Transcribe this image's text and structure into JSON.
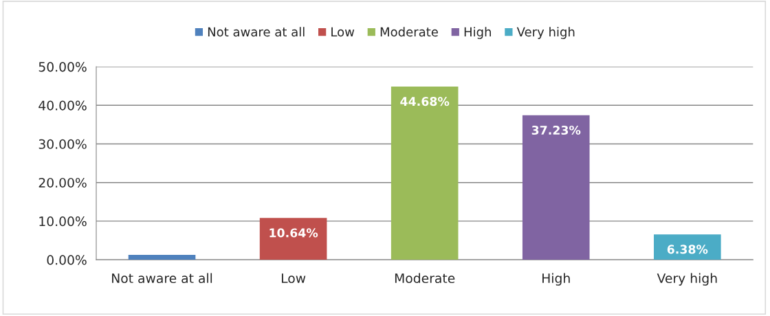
{
  "chart_data": {
    "type": "bar",
    "categories": [
      "Not aware at all",
      "Low",
      "Moderate",
      "High",
      "Very high"
    ],
    "series": [
      {
        "name": "Not aware at all",
        "color": "#4f81bd",
        "values": [
          1.1,
          null,
          null,
          null,
          null
        ],
        "value_labels": [
          null,
          null,
          null,
          null,
          null
        ]
      },
      {
        "name": "Low",
        "color": "#c0504d",
        "values": [
          null,
          10.64,
          null,
          null,
          null
        ],
        "value_labels": [
          null,
          "10.64%",
          null,
          null,
          null
        ]
      },
      {
        "name": "Moderate",
        "color": "#9bbb59",
        "values": [
          null,
          null,
          44.68,
          null,
          null
        ],
        "value_labels": [
          null,
          null,
          "44.68%",
          null,
          null
        ]
      },
      {
        "name": "High",
        "color": "#8064a2",
        "values": [
          null,
          null,
          null,
          37.23,
          null
        ],
        "value_labels": [
          null,
          null,
          null,
          "37.23%",
          null
        ]
      },
      {
        "name": "Very high",
        "color": "#4bacc6",
        "values": [
          null,
          null,
          null,
          null,
          6.38
        ],
        "value_labels": [
          null,
          null,
          null,
          null,
          "6.38%"
        ]
      }
    ],
    "ylim": [
      0,
      50
    ],
    "yticks": [
      {
        "value": 0,
        "label": "0.00%"
      },
      {
        "value": 10,
        "label": "10.00%"
      },
      {
        "value": 20,
        "label": "20.00%"
      },
      {
        "value": 30,
        "label": "30.00%"
      },
      {
        "value": 40,
        "label": "40.00%"
      },
      {
        "value": 50,
        "label": "50.00%"
      }
    ],
    "grid": "y",
    "legend": "top"
  }
}
